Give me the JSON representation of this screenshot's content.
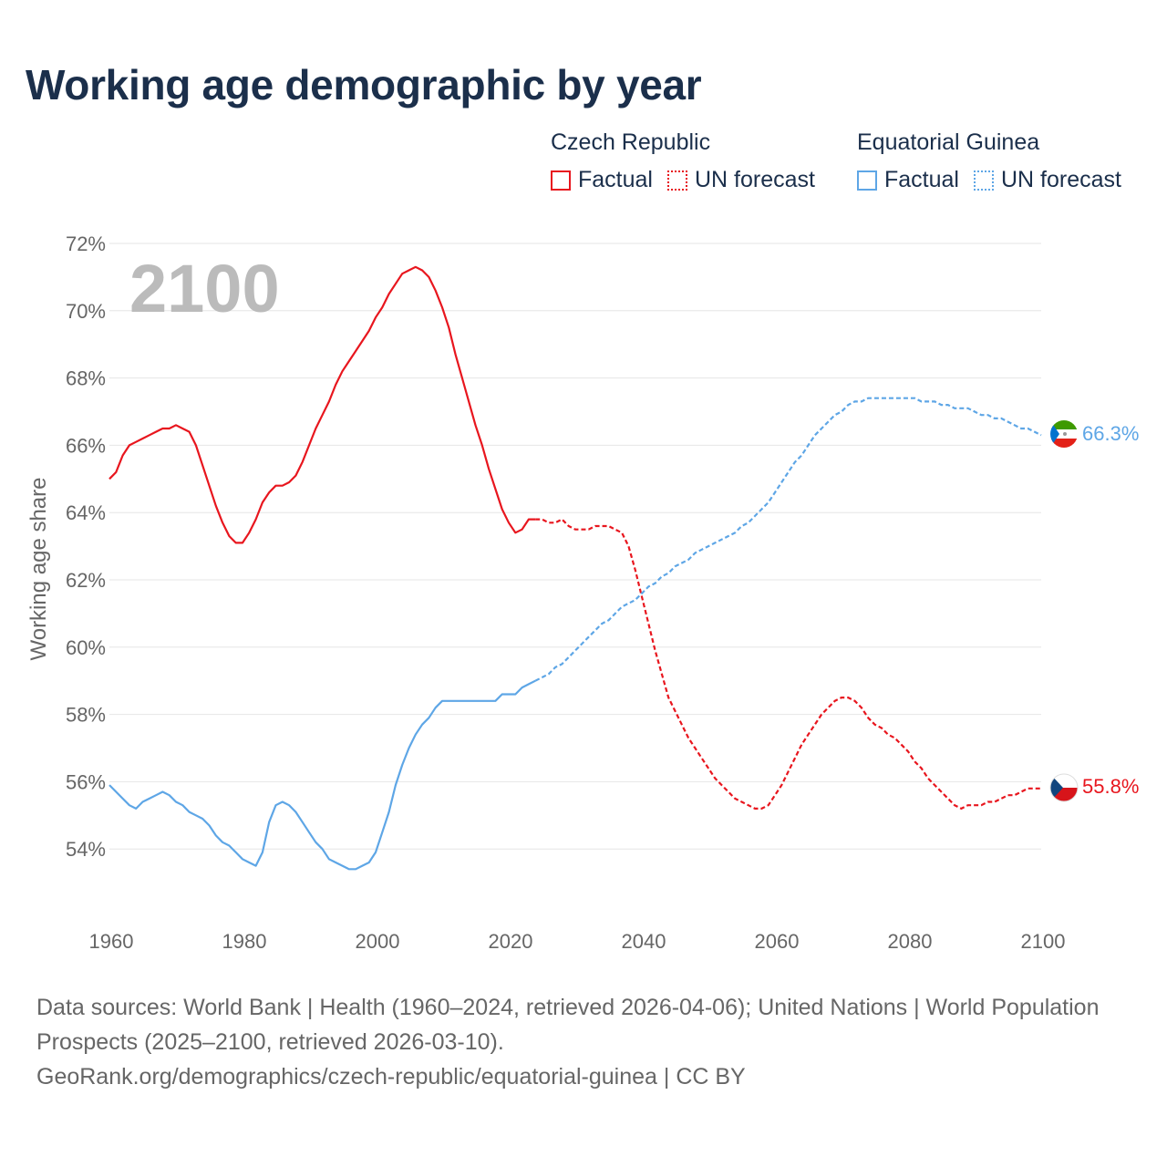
{
  "title": "Working age demographic by year",
  "legend": {
    "groups": [
      {
        "country": "Czech Republic",
        "factual": "Factual",
        "forecast": "UN forecast",
        "color": "#e8161e"
      },
      {
        "country": "Equatorial Guinea",
        "factual": "Factual",
        "forecast": "UN forecast",
        "color": "#5ea6e6"
      }
    ]
  },
  "year_overlay": "2100",
  "end_labels": {
    "czech": "55.8%",
    "eqg": "66.3%"
  },
  "footer": {
    "sources": "Data sources: World Bank | Health (1960–2024, retrieved 2026-04-06); United Nations | World Population Prospects (2025–2100, retrieved 2026-03-10).",
    "url": "GeoRank.org/demographics/czech-republic/equatorial-guinea | CC BY"
  },
  "chart_data": {
    "type": "line",
    "title": "Working age demographic by year",
    "xlabel": "",
    "ylabel": "Working age share",
    "xlim": [
      1960,
      2100
    ],
    "ylim": [
      52,
      72
    ],
    "x_ticks": [
      1960,
      1980,
      2000,
      2020,
      2040,
      2060,
      2080,
      2100
    ],
    "y_ticks": [
      54,
      56,
      58,
      60,
      62,
      64,
      66,
      68,
      70,
      72
    ],
    "y_tick_labels": [
      "54%",
      "56%",
      "58%",
      "60%",
      "62%",
      "64%",
      "66%",
      "68%",
      "70%",
      "72%"
    ],
    "grid": true,
    "series": [
      {
        "name": "Czech Republic",
        "color": "#e8161e",
        "factual": [
          [
            1960,
            65.0
          ],
          [
            1961,
            65.2
          ],
          [
            1962,
            65.7
          ],
          [
            1963,
            66.0
          ],
          [
            1964,
            66.1
          ],
          [
            1965,
            66.2
          ],
          [
            1966,
            66.3
          ],
          [
            1967,
            66.4
          ],
          [
            1968,
            66.5
          ],
          [
            1969,
            66.5
          ],
          [
            1970,
            66.6
          ],
          [
            1971,
            66.5
          ],
          [
            1972,
            66.4
          ],
          [
            1973,
            66.0
          ],
          [
            1974,
            65.4
          ],
          [
            1975,
            64.8
          ],
          [
            1976,
            64.2
          ],
          [
            1977,
            63.7
          ],
          [
            1978,
            63.3
          ],
          [
            1979,
            63.1
          ],
          [
            1980,
            63.1
          ],
          [
            1981,
            63.4
          ],
          [
            1982,
            63.8
          ],
          [
            1983,
            64.3
          ],
          [
            1984,
            64.6
          ],
          [
            1985,
            64.8
          ],
          [
            1986,
            64.8
          ],
          [
            1987,
            64.9
          ],
          [
            1988,
            65.1
          ],
          [
            1989,
            65.5
          ],
          [
            1990,
            66.0
          ],
          [
            1991,
            66.5
          ],
          [
            1992,
            66.9
          ],
          [
            1993,
            67.3
          ],
          [
            1994,
            67.8
          ],
          [
            1995,
            68.2
          ],
          [
            1996,
            68.5
          ],
          [
            1997,
            68.8
          ],
          [
            1998,
            69.1
          ],
          [
            1999,
            69.4
          ],
          [
            2000,
            69.8
          ],
          [
            2001,
            70.1
          ],
          [
            2002,
            70.5
          ],
          [
            2003,
            70.8
          ],
          [
            2004,
            71.1
          ],
          [
            2005,
            71.2
          ],
          [
            2006,
            71.3
          ],
          [
            2007,
            71.2
          ],
          [
            2008,
            71.0
          ],
          [
            2009,
            70.6
          ],
          [
            2010,
            70.1
          ],
          [
            2011,
            69.5
          ],
          [
            2012,
            68.7
          ],
          [
            2013,
            68.0
          ],
          [
            2014,
            67.3
          ],
          [
            2015,
            66.6
          ],
          [
            2016,
            66.0
          ],
          [
            2017,
            65.3
          ],
          [
            2018,
            64.7
          ],
          [
            2019,
            64.1
          ],
          [
            2020,
            63.7
          ],
          [
            2021,
            63.4
          ],
          [
            2022,
            63.5
          ],
          [
            2023,
            63.8
          ],
          [
            2024,
            63.8
          ]
        ],
        "forecast": [
          [
            2024,
            63.8
          ],
          [
            2025,
            63.8
          ],
          [
            2026,
            63.7
          ],
          [
            2027,
            63.7
          ],
          [
            2028,
            63.8
          ],
          [
            2029,
            63.6
          ],
          [
            2030,
            63.5
          ],
          [
            2031,
            63.5
          ],
          [
            2032,
            63.5
          ],
          [
            2033,
            63.6
          ],
          [
            2034,
            63.6
          ],
          [
            2035,
            63.6
          ],
          [
            2036,
            63.5
          ],
          [
            2037,
            63.4
          ],
          [
            2038,
            63.0
          ],
          [
            2039,
            62.3
          ],
          [
            2040,
            61.5
          ],
          [
            2041,
            60.7
          ],
          [
            2042,
            59.9
          ],
          [
            2043,
            59.2
          ],
          [
            2044,
            58.5
          ],
          [
            2045,
            58.1
          ],
          [
            2046,
            57.7
          ],
          [
            2047,
            57.3
          ],
          [
            2048,
            57.0
          ],
          [
            2049,
            56.7
          ],
          [
            2050,
            56.4
          ],
          [
            2051,
            56.1
          ],
          [
            2052,
            55.9
          ],
          [
            2053,
            55.7
          ],
          [
            2054,
            55.5
          ],
          [
            2055,
            55.4
          ],
          [
            2056,
            55.3
          ],
          [
            2057,
            55.2
          ],
          [
            2058,
            55.2
          ],
          [
            2059,
            55.3
          ],
          [
            2060,
            55.6
          ],
          [
            2061,
            55.9
          ],
          [
            2062,
            56.3
          ],
          [
            2063,
            56.7
          ],
          [
            2064,
            57.1
          ],
          [
            2065,
            57.4
          ],
          [
            2066,
            57.7
          ],
          [
            2067,
            58.0
          ],
          [
            2068,
            58.2
          ],
          [
            2069,
            58.4
          ],
          [
            2070,
            58.5
          ],
          [
            2071,
            58.5
          ],
          [
            2072,
            58.4
          ],
          [
            2073,
            58.2
          ],
          [
            2074,
            57.9
          ],
          [
            2075,
            57.7
          ],
          [
            2076,
            57.6
          ],
          [
            2077,
            57.4
          ],
          [
            2078,
            57.3
          ],
          [
            2079,
            57.1
          ],
          [
            2080,
            56.9
          ],
          [
            2081,
            56.6
          ],
          [
            2082,
            56.4
          ],
          [
            2083,
            56.1
          ],
          [
            2084,
            55.9
          ],
          [
            2085,
            55.7
          ],
          [
            2086,
            55.5
          ],
          [
            2087,
            55.3
          ],
          [
            2088,
            55.2
          ],
          [
            2089,
            55.3
          ],
          [
            2090,
            55.3
          ],
          [
            2091,
            55.3
          ],
          [
            2092,
            55.4
          ],
          [
            2093,
            55.4
          ],
          [
            2094,
            55.5
          ],
          [
            2095,
            55.6
          ],
          [
            2096,
            55.6
          ],
          [
            2097,
            55.7
          ],
          [
            2098,
            55.8
          ],
          [
            2099,
            55.8
          ],
          [
            2100,
            55.8
          ]
        ]
      },
      {
        "name": "Equatorial Guinea",
        "color": "#5ea6e6",
        "factual": [
          [
            1960,
            55.9
          ],
          [
            1961,
            55.7
          ],
          [
            1962,
            55.5
          ],
          [
            1963,
            55.3
          ],
          [
            1964,
            55.2
          ],
          [
            1965,
            55.4
          ],
          [
            1966,
            55.5
          ],
          [
            1967,
            55.6
          ],
          [
            1968,
            55.7
          ],
          [
            1969,
            55.6
          ],
          [
            1970,
            55.4
          ],
          [
            1971,
            55.3
          ],
          [
            1972,
            55.1
          ],
          [
            1973,
            55.0
          ],
          [
            1974,
            54.9
          ],
          [
            1975,
            54.7
          ],
          [
            1976,
            54.4
          ],
          [
            1977,
            54.2
          ],
          [
            1978,
            54.1
          ],
          [
            1979,
            53.9
          ],
          [
            1980,
            53.7
          ],
          [
            1981,
            53.6
          ],
          [
            1982,
            53.5
          ],
          [
            1983,
            53.9
          ],
          [
            1984,
            54.8
          ],
          [
            1985,
            55.3
          ],
          [
            1986,
            55.4
          ],
          [
            1987,
            55.3
          ],
          [
            1988,
            55.1
          ],
          [
            1989,
            54.8
          ],
          [
            1990,
            54.5
          ],
          [
            1991,
            54.2
          ],
          [
            1992,
            54.0
          ],
          [
            1993,
            53.7
          ],
          [
            1994,
            53.6
          ],
          [
            1995,
            53.5
          ],
          [
            1996,
            53.4
          ],
          [
            1997,
            53.4
          ],
          [
            1998,
            53.5
          ],
          [
            1999,
            53.6
          ],
          [
            2000,
            53.9
          ],
          [
            2001,
            54.5
          ],
          [
            2002,
            55.1
          ],
          [
            2003,
            55.9
          ],
          [
            2004,
            56.5
          ],
          [
            2005,
            57.0
          ],
          [
            2006,
            57.4
          ],
          [
            2007,
            57.7
          ],
          [
            2008,
            57.9
          ],
          [
            2009,
            58.2
          ],
          [
            2010,
            58.4
          ],
          [
            2011,
            58.4
          ],
          [
            2012,
            58.4
          ],
          [
            2013,
            58.4
          ],
          [
            2014,
            58.4
          ],
          [
            2015,
            58.4
          ],
          [
            2016,
            58.4
          ],
          [
            2017,
            58.4
          ],
          [
            2018,
            58.4
          ],
          [
            2019,
            58.6
          ],
          [
            2020,
            58.6
          ],
          [
            2021,
            58.6
          ],
          [
            2022,
            58.8
          ],
          [
            2023,
            58.9
          ],
          [
            2024,
            59.0
          ]
        ],
        "forecast": [
          [
            2024,
            59.0
          ],
          [
            2025,
            59.1
          ],
          [
            2026,
            59.2
          ],
          [
            2027,
            59.4
          ],
          [
            2028,
            59.5
          ],
          [
            2029,
            59.7
          ],
          [
            2030,
            59.9
          ],
          [
            2031,
            60.1
          ],
          [
            2032,
            60.3
          ],
          [
            2033,
            60.5
          ],
          [
            2034,
            60.7
          ],
          [
            2035,
            60.8
          ],
          [
            2036,
            61.0
          ],
          [
            2037,
            61.2
          ],
          [
            2038,
            61.3
          ],
          [
            2039,
            61.4
          ],
          [
            2040,
            61.6
          ],
          [
            2041,
            61.8
          ],
          [
            2042,
            61.9
          ],
          [
            2043,
            62.1
          ],
          [
            2044,
            62.2
          ],
          [
            2045,
            62.4
          ],
          [
            2046,
            62.5
          ],
          [
            2047,
            62.6
          ],
          [
            2048,
            62.8
          ],
          [
            2049,
            62.9
          ],
          [
            2050,
            63.0
          ],
          [
            2051,
            63.1
          ],
          [
            2052,
            63.2
          ],
          [
            2053,
            63.3
          ],
          [
            2054,
            63.4
          ],
          [
            2055,
            63.6
          ],
          [
            2056,
            63.7
          ],
          [
            2057,
            63.9
          ],
          [
            2058,
            64.1
          ],
          [
            2059,
            64.3
          ],
          [
            2060,
            64.6
          ],
          [
            2061,
            64.9
          ],
          [
            2062,
            65.2
          ],
          [
            2063,
            65.5
          ],
          [
            2064,
            65.7
          ],
          [
            2065,
            66.0
          ],
          [
            2066,
            66.3
          ],
          [
            2067,
            66.5
          ],
          [
            2068,
            66.7
          ],
          [
            2069,
            66.9
          ],
          [
            2070,
            67.0
          ],
          [
            2071,
            67.2
          ],
          [
            2072,
            67.3
          ],
          [
            2073,
            67.3
          ],
          [
            2074,
            67.4
          ],
          [
            2075,
            67.4
          ],
          [
            2076,
            67.4
          ],
          [
            2077,
            67.4
          ],
          [
            2078,
            67.4
          ],
          [
            2079,
            67.4
          ],
          [
            2080,
            67.4
          ],
          [
            2081,
            67.4
          ],
          [
            2082,
            67.3
          ],
          [
            2083,
            67.3
          ],
          [
            2084,
            67.3
          ],
          [
            2085,
            67.2
          ],
          [
            2086,
            67.2
          ],
          [
            2087,
            67.1
          ],
          [
            2088,
            67.1
          ],
          [
            2089,
            67.1
          ],
          [
            2090,
            67.0
          ],
          [
            2091,
            66.9
          ],
          [
            2092,
            66.9
          ],
          [
            2093,
            66.8
          ],
          [
            2094,
            66.8
          ],
          [
            2095,
            66.7
          ],
          [
            2096,
            66.6
          ],
          [
            2097,
            66.5
          ],
          [
            2098,
            66.5
          ],
          [
            2099,
            66.4
          ],
          [
            2100,
            66.3
          ]
        ]
      }
    ]
  }
}
